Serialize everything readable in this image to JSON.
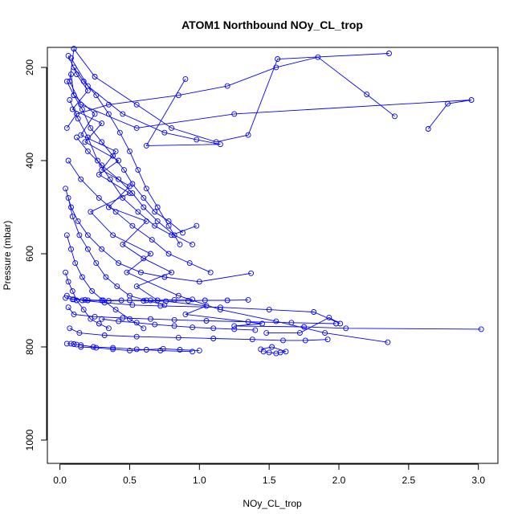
{
  "chart_data": {
    "type": "line",
    "title": "ATOM1 Northbound NOy_CL_trop",
    "xlabel": "NOy_CL_trop",
    "ylabel": "Pressure (mbar)",
    "xlim": [
      -0.09,
      3.14
    ],
    "ylim": [
      1050,
      157
    ],
    "y_reversed": true,
    "x_ticks": [
      "0.0",
      "0.5",
      "1.0",
      "1.5",
      "2.0",
      "2.5",
      "3.0"
    ],
    "x_tick_values": [
      0,
      0.5,
      1.0,
      1.5,
      2.0,
      2.5,
      3.0
    ],
    "y_ticks": [
      "200",
      "400",
      "600",
      "800",
      "1000"
    ],
    "y_tick_values": [
      200,
      400,
      600,
      800,
      1000
    ],
    "marker": "open-circle",
    "grid": false,
    "legend": "none",
    "colors": {
      "series": "#0000ff",
      "axis": "#000000"
    },
    "series": [
      {
        "x": [
          0.08,
          0.1,
          0.25,
          0.15,
          0.4,
          0.3,
          0.5,
          0.35,
          0.62,
          0.45,
          0.6,
          0.8,
          0.55,
          0.7,
          1.05,
          0.9,
          1.45,
          1.25,
          1.75,
          2.05,
          3.02
        ],
        "y": [
          215,
          260,
          300,
          345,
          380,
          420,
          455,
          500,
          530,
          580,
          610,
          640,
          670,
          700,
          712,
          730,
          750,
          755,
          757,
          760,
          762
        ]
      },
      {
        "x": [
          0.06,
          0.12,
          0.2,
          0.09,
          0.3,
          0.18,
          0.42,
          0.28,
          0.5,
          0.22,
          0.38,
          0.65,
          0.48,
          0.85,
          1.15,
          1.55,
          1.9,
          2.35
        ],
        "y": [
          175,
          215,
          250,
          290,
          320,
          360,
          400,
          430,
          470,
          510,
          560,
          600,
          640,
          690,
          720,
          745,
          770,
          790
        ]
      },
      {
        "x": [
          0.1,
          0.07,
          0.15,
          0.55,
          1.25,
          2.95,
          2.78,
          2.64
        ],
        "y": [
          160,
          230,
          280,
          330,
          300,
          270,
          278,
          332
        ]
      },
      {
        "x": [
          0.05,
          0.12,
          0.35,
          0.85,
          1.2,
          1.55,
          1.85,
          2.2,
          2.4
        ],
        "y": [
          330,
          300,
          280,
          260,
          240,
          200,
          178,
          258,
          305
        ]
      },
      {
        "x": [
          0.08,
          0.2,
          0.45,
          0.75,
          0.98,
          1.15,
          0.62,
          0.9
        ],
        "y": [
          180,
          240,
          300,
          340,
          355,
          365,
          368,
          225
        ]
      },
      {
        "x": [
          0.1,
          0.25,
          0.55,
          0.8,
          1.12,
          1.35,
          1.56,
          2.36
        ],
        "y": [
          160,
          220,
          280,
          330,
          360,
          345,
          182,
          170
        ]
      },
      {
        "x": [
          0.06,
          0.15,
          0.28,
          0.4,
          0.52,
          0.66,
          0.78,
          0.93,
          1.08
        ],
        "y": [
          400,
          440,
          480,
          510,
          540,
          570,
          600,
          620,
          640
        ]
      },
      {
        "x": [
          0.04,
          0.08,
          0.13,
          0.2,
          0.3,
          0.42,
          0.58,
          0.75,
          1.0,
          1.37
        ],
        "y": [
          460,
          500,
          530,
          560,
          590,
          620,
          640,
          650,
          660,
          642
        ]
      },
      {
        "x": [
          0.05,
          0.16,
          0.32,
          0.52,
          0.72,
          1.15,
          1.5,
          1.82,
          2.01,
          1.93,
          1.72,
          1.48
        ],
        "y": [
          690,
          700,
          705,
          710,
          712,
          715,
          720,
          725,
          750,
          737,
          770,
          770
        ]
      },
      {
        "x": [
          0.06,
          0.1,
          0.25,
          0.45,
          0.65,
          0.82,
          1.05,
          1.35,
          1.66,
          1.98
        ],
        "y": [
          715,
          730,
          735,
          738,
          740,
          742,
          744,
          746,
          748,
          750
        ]
      },
      {
        "x": [
          0.07,
          0.14,
          0.32,
          0.55,
          0.85,
          1.1,
          1.38,
          1.6,
          1.76,
          1.92
        ],
        "y": [
          760,
          770,
          775,
          778,
          780,
          782,
          784,
          786,
          786,
          784
        ]
      },
      {
        "x": [
          0.05,
          0.08,
          0.1,
          0.12,
          0.15,
          0.24,
          0.38,
          0.55,
          0.72,
          0.95
        ],
        "y": [
          793,
          793,
          794,
          795,
          796,
          800,
          802,
          805,
          808,
          810
        ]
      },
      {
        "x": [
          1.46,
          1.5,
          1.55,
          1.58,
          1.62,
          1.52,
          1.44
        ],
        "y": [
          810,
          812,
          814,
          812,
          810,
          800,
          805
        ]
      },
      {
        "x": [
          0.04,
          0.1,
          0.2,
          0.35,
          0.5,
          0.65,
          0.82,
          0.95
        ],
        "y": [
          695,
          698,
          700,
          701,
          700,
          700,
          699,
          698
        ]
      },
      {
        "x": [
          0.09,
          0.18,
          0.3,
          0.44,
          0.6,
          0.76,
          0.92,
          1.04,
          1.2,
          1.35
        ],
        "y": [
          698,
          699,
          700,
          700,
          701,
          702,
          701,
          700,
          700,
          699
        ]
      },
      {
        "x": [
          0.05,
          0.1,
          0.16,
          0.22,
          0.3,
          0.38,
          0.46,
          0.52,
          0.6,
          0.68,
          0.78,
          0.88
        ],
        "y": [
          230,
          260,
          290,
          330,
          360,
          390,
          420,
          450,
          480,
          510,
          530,
          555
        ]
      },
      {
        "x": [
          0.07,
          0.13,
          0.2,
          0.27,
          0.36,
          0.45,
          0.56,
          0.68,
          0.8,
          0.98
        ],
        "y": [
          270,
          310,
          350,
          400,
          440,
          480,
          510,
          540,
          560,
          540
        ]
      },
      {
        "x": [
          0.06,
          0.09,
          0.14,
          0.2,
          0.26,
          0.33,
          0.41,
          0.5,
          0.62,
          0.75
        ],
        "y": [
          480,
          520,
          560,
          590,
          620,
          650,
          670,
          690,
          700,
          710
        ]
      },
      {
        "x": [
          0.05,
          0.08,
          0.11,
          0.16,
          0.23,
          0.31,
          0.4,
          0.5,
          0.6
        ],
        "y": [
          560,
          590,
          620,
          650,
          680,
          700,
          720,
          740,
          760
        ]
      },
      {
        "x": [
          0.1,
          0.17,
          0.26,
          0.35,
          0.43,
          0.5,
          0.56,
          0.62,
          0.7,
          0.78,
          0.86
        ],
        "y": [
          200,
          230,
          260,
          300,
          340,
          380,
          420,
          460,
          500,
          540,
          580
        ]
      },
      {
        "x": [
          0.12,
          0.2,
          0.3,
          0.42,
          0.52,
          0.6,
          0.7,
          0.82,
          0.95
        ],
        "y": [
          350,
          380,
          410,
          440,
          470,
          500,
          530,
          560,
          580
        ]
      },
      {
        "x": [
          0.04,
          0.06,
          0.09,
          0.12,
          0.17,
          0.22,
          0.28,
          0.35
        ],
        "y": [
          640,
          660,
          680,
          700,
          720,
          740,
          750,
          760
        ]
      },
      {
        "x": [
          0.3,
          0.42,
          0.55,
          0.68,
          0.82,
          0.95,
          1.1,
          1.25,
          1.4
        ],
        "y": [
          740,
          745,
          748,
          752,
          755,
          758,
          760,
          762,
          764
        ]
      },
      {
        "x": [
          0.15,
          0.26,
          0.38,
          0.5,
          0.62,
          0.74,
          0.86,
          1.0
        ],
        "y": [
          800,
          802,
          805,
          808,
          806,
          804,
          806,
          808
        ]
      }
    ]
  }
}
